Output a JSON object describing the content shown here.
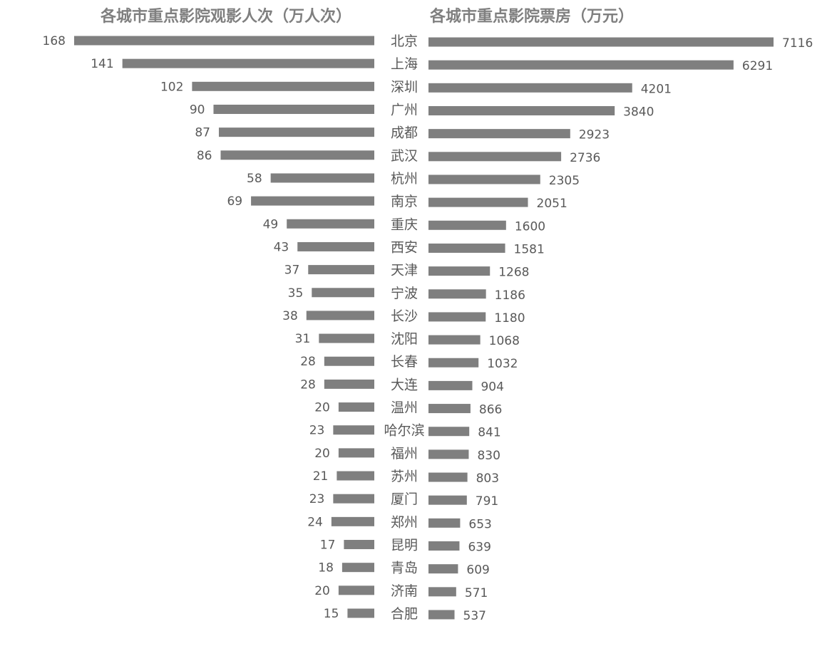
{
  "chart_data": [
    {
      "type": "bar",
      "orientation": "horizontal",
      "direction": "right-to-left",
      "title": "各城市重点影院观影人次（万人次）",
      "categories": [
        "北京",
        "上海",
        "深圳",
        "广州",
        "成都",
        "武汉",
        "杭州",
        "南京",
        "重庆",
        "西安",
        "天津",
        "宁波",
        "长沙",
        "沈阳",
        "长春",
        "大连",
        "温州",
        "哈尔滨",
        "福州",
        "苏州",
        "厦门",
        "郑州",
        "昆明",
        "青岛",
        "济南",
        "合肥"
      ],
      "values": [
        168,
        141,
        102,
        90,
        87,
        86,
        58,
        69,
        49,
        43,
        37,
        35,
        38,
        31,
        28,
        28,
        20,
        23,
        20,
        21,
        23,
        24,
        17,
        18,
        20,
        15
      ],
      "xlim": [
        0,
        168
      ],
      "grid": false,
      "color": "#7f7f7f"
    },
    {
      "type": "bar",
      "orientation": "horizontal",
      "direction": "left-to-right",
      "title": "各城市重点影院票房（万元）",
      "categories": [
        "北京",
        "上海",
        "深圳",
        "广州",
        "成都",
        "武汉",
        "杭州",
        "南京",
        "重庆",
        "西安",
        "天津",
        "宁波",
        "长沙",
        "沈阳",
        "长春",
        "大连",
        "温州",
        "哈尔滨",
        "福州",
        "苏州",
        "厦门",
        "郑州",
        "昆明",
        "青岛",
        "济南",
        "合肥"
      ],
      "values": [
        7116,
        6291,
        4201,
        3840,
        2923,
        2736,
        2305,
        2051,
        1600,
        1581,
        1268,
        1186,
        1180,
        1068,
        1032,
        904,
        866,
        841,
        830,
        803,
        791,
        653,
        639,
        609,
        571,
        537
      ],
      "xlim": [
        0,
        7116
      ],
      "grid": false,
      "color": "#7f7f7f"
    }
  ]
}
